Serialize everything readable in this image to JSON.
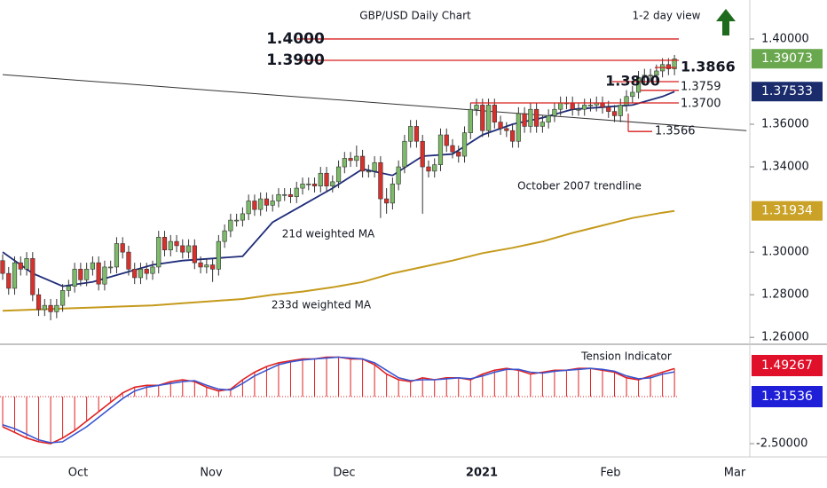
{
  "chart_data": {
    "type": "candlestick",
    "title": "GBP/USD Daily Chart",
    "subtitle": "1-2 day view",
    "open": [
      1.296,
      1.29,
      1.283,
      1.295,
      1.292,
      1.297,
      1.28,
      1.273,
      1.275,
      1.272,
      1.275,
      1.282,
      1.284,
      1.292,
      1.287,
      1.292,
      1.295,
      1.285,
      1.293,
      1.293,
      1.304,
      1.3,
      1.292,
      1.288,
      1.292,
      1.29,
      1.293,
      1.307,
      1.301,
      1.305,
      1.303,
      1.3,
      1.303,
      1.295,
      1.293,
      1.294,
      1.292,
      1.305,
      1.31,
      1.315,
      1.315,
      1.318,
      1.324,
      1.32,
      1.325,
      1.322,
      1.324,
      1.327,
      1.327,
      1.326,
      1.33,
      1.332,
      1.332,
      1.331,
      1.337,
      1.331,
      1.333,
      1.34,
      1.344,
      1.343,
      1.345,
      1.338,
      1.338,
      1.342,
      1.325,
      1.323,
      1.332,
      1.34,
      1.352,
      1.359,
      1.352,
      1.34,
      1.338,
      1.341,
      1.355,
      1.35,
      1.347,
      1.345,
      1.356,
      1.367,
      1.369,
      1.357,
      1.369,
      1.361,
      1.358,
      1.357,
      1.352,
      1.365,
      1.359,
      1.367,
      1.359,
      1.361,
      1.364,
      1.367,
      1.37,
      1.37,
      1.367,
      1.367,
      1.369,
      1.369,
      1.37,
      1.368,
      1.366,
      1.364,
      1.369,
      1.373,
      1.375,
      1.382,
      1.383,
      1.383,
      1.385,
      1.388,
      1.386
    ],
    "high": [
      1.299,
      1.293,
      1.298,
      1.298,
      1.3,
      1.3,
      1.283,
      1.278,
      1.278,
      1.278,
      1.285,
      1.287,
      1.295,
      1.295,
      1.295,
      1.298,
      1.298,
      1.296,
      1.296,
      1.307,
      1.307,
      1.303,
      1.295,
      1.295,
      1.295,
      1.296,
      1.31,
      1.31,
      1.308,
      1.308,
      1.306,
      1.306,
      1.306,
      1.298,
      1.297,
      1.297,
      1.308,
      1.313,
      1.318,
      1.318,
      1.321,
      1.327,
      1.327,
      1.328,
      1.328,
      1.327,
      1.33,
      1.33,
      1.33,
      1.333,
      1.335,
      1.335,
      1.335,
      1.34,
      1.34,
      1.336,
      1.343,
      1.347,
      1.347,
      1.35,
      1.348,
      1.341,
      1.345,
      1.345,
      1.33,
      1.335,
      1.343,
      1.355,
      1.362,
      1.362,
      1.355,
      1.343,
      1.344,
      1.358,
      1.358,
      1.353,
      1.35,
      1.359,
      1.37,
      1.372,
      1.372,
      1.372,
      1.372,
      1.364,
      1.361,
      1.36,
      1.368,
      1.368,
      1.37,
      1.37,
      1.364,
      1.367,
      1.37,
      1.373,
      1.373,
      1.373,
      1.37,
      1.372,
      1.372,
      1.373,
      1.373,
      1.371,
      1.369,
      1.372,
      1.376,
      1.378,
      1.385,
      1.386,
      1.386,
      1.388,
      1.391,
      1.391,
      1.3925
    ],
    "low": [
      1.287,
      1.28,
      1.28,
      1.289,
      1.289,
      1.277,
      1.27,
      1.27,
      1.268,
      1.269,
      1.272,
      1.279,
      1.281,
      1.284,
      1.284,
      1.289,
      1.282,
      1.282,
      1.29,
      1.29,
      1.297,
      1.289,
      1.285,
      1.285,
      1.287,
      1.287,
      1.29,
      1.298,
      1.298,
      1.3,
      1.297,
      1.297,
      1.292,
      1.29,
      1.29,
      1.286,
      1.289,
      1.302,
      1.307,
      1.312,
      1.312,
      1.315,
      1.317,
      1.317,
      1.319,
      1.319,
      1.321,
      1.324,
      1.323,
      1.323,
      1.327,
      1.329,
      1.328,
      1.328,
      1.328,
      1.328,
      1.33,
      1.337,
      1.34,
      1.34,
      1.335,
      1.335,
      1.335,
      1.316,
      1.318,
      1.32,
      1.329,
      1.337,
      1.349,
      1.349,
      1.318,
      1.335,
      1.335,
      1.338,
      1.347,
      1.344,
      1.342,
      1.342,
      1.353,
      1.364,
      1.354,
      1.354,
      1.358,
      1.355,
      1.354,
      1.349,
      1.349,
      1.356,
      1.356,
      1.356,
      1.356,
      1.358,
      1.361,
      1.364,
      1.367,
      1.364,
      1.364,
      1.364,
      1.366,
      1.366,
      1.365,
      1.363,
      1.361,
      1.361,
      1.366,
      1.37,
      1.372,
      1.379,
      1.38,
      1.38,
      1.382,
      1.383,
      1.383
    ],
    "close": [
      1.29,
      1.283,
      1.295,
      1.292,
      1.297,
      1.28,
      1.273,
      1.275,
      1.272,
      1.275,
      1.282,
      1.284,
      1.292,
      1.287,
      1.292,
      1.295,
      1.285,
      1.293,
      1.293,
      1.304,
      1.3,
      1.292,
      1.288,
      1.292,
      1.29,
      1.293,
      1.307,
      1.301,
      1.305,
      1.303,
      1.3,
      1.303,
      1.295,
      1.293,
      1.294,
      1.292,
      1.305,
      1.31,
      1.315,
      1.315,
      1.318,
      1.324,
      1.32,
      1.325,
      1.322,
      1.324,
      1.327,
      1.327,
      1.326,
      1.33,
      1.332,
      1.332,
      1.331,
      1.337,
      1.331,
      1.333,
      1.34,
      1.344,
      1.343,
      1.345,
      1.338,
      1.338,
      1.342,
      1.325,
      1.323,
      1.332,
      1.34,
      1.352,
      1.359,
      1.352,
      1.34,
      1.338,
      1.341,
      1.355,
      1.35,
      1.347,
      1.345,
      1.356,
      1.367,
      1.369,
      1.357,
      1.369,
      1.361,
      1.358,
      1.357,
      1.352,
      1.365,
      1.359,
      1.367,
      1.359,
      1.361,
      1.364,
      1.367,
      1.37,
      1.37,
      1.367,
      1.367,
      1.369,
      1.369,
      1.37,
      1.368,
      1.366,
      1.364,
      1.369,
      1.373,
      1.375,
      1.382,
      1.383,
      1.383,
      1.385,
      1.388,
      1.386,
      1.3907
    ],
    "up_color": "#7dbb6a",
    "down_color": "#d9302c",
    "ylim": [
      1.258,
      1.4183
    ],
    "yticks": [
      {
        "value": 1.4,
        "label": "1.40000"
      },
      {
        "value": 1.36,
        "label": "1.36000"
      },
      {
        "value": 1.34,
        "label": "1.34000"
      },
      {
        "value": 1.3,
        "label": "1.30000"
      },
      {
        "value": 1.28,
        "label": "1.28000"
      },
      {
        "value": 1.26,
        "label": "1.26000"
      }
    ],
    "x_labels": [
      "Oct",
      "Nov",
      "Dec",
      "2021",
      "Feb",
      "Mar"
    ],
    "levels": [
      {
        "value": 1.4,
        "label": "1.4000"
      },
      {
        "value": 1.39,
        "label": "1.3900"
      },
      {
        "value": 1.3866,
        "label": "1.3866"
      },
      {
        "value": 1.38,
        "label": "1.3800"
      },
      {
        "value": 1.3759,
        "label": "1.3759"
      },
      {
        "value": 1.37,
        "label": "1.3700"
      },
      {
        "value": 1.3566,
        "label": "1.3566"
      }
    ],
    "level_color": "#d81e1e",
    "ma21": {
      "name": "21d weighted MA",
      "color": "#1f2d7a",
      "x": [
        0,
        5,
        10,
        15,
        20,
        25,
        30,
        35,
        40,
        45,
        50,
        55,
        60,
        65,
        70,
        75,
        80,
        85,
        90,
        95,
        100,
        105,
        110,
        112
      ],
      "values": [
        1.3,
        1.29,
        1.284,
        1.286,
        1.29,
        1.294,
        1.296,
        1.297,
        1.298,
        1.314,
        1.322,
        1.33,
        1.339,
        1.336,
        1.345,
        1.346,
        1.355,
        1.36,
        1.363,
        1.367,
        1.368,
        1.369,
        1.373,
        1.3753
      ]
    },
    "ma233": {
      "name": "233d weighted MA",
      "color": "#c59a1c",
      "x": [
        0,
        5,
        10,
        15,
        20,
        25,
        30,
        35,
        40,
        45,
        50,
        55,
        60,
        65,
        70,
        75,
        80,
        85,
        90,
        95,
        100,
        105,
        110,
        112
      ],
      "values": [
        1.2725,
        1.273,
        1.2735,
        1.274,
        1.2745,
        1.275,
        1.276,
        1.277,
        1.278,
        1.28,
        1.2815,
        1.2835,
        1.286,
        1.29,
        1.293,
        1.296,
        1.2995,
        1.302,
        1.305,
        1.309,
        1.3125,
        1.316,
        1.3185,
        1.31934
      ]
    },
    "trendline": {
      "name": "October 2007 trendline",
      "color": "#333333",
      "x": [
        0,
        124
      ],
      "values": [
        1.3833,
        1.357
      ]
    },
    "price_badges": [
      {
        "value": 1.39073,
        "color": "#6aa84f"
      },
      {
        "value": 1.37533,
        "color": "#1a2c6b"
      },
      {
        "value": 1.31934,
        "color": "#c9a227"
      }
    ],
    "indicator": {
      "name": "Tension Indicator",
      "color": "#e02020",
      "signal_color": "#3a55d0",
      "x": [
        0,
        2,
        4,
        6,
        8,
        10,
        12,
        14,
        16,
        18,
        20,
        22,
        24,
        26,
        28,
        30,
        32,
        34,
        36,
        38,
        40,
        42,
        44,
        46,
        48,
        50,
        52,
        54,
        56,
        58,
        60,
        62,
        64,
        66,
        68,
        70,
        72,
        74,
        76,
        78,
        80,
        82,
        84,
        86,
        88,
        90,
        92,
        94,
        96,
        98,
        100,
        102,
        104,
        106,
        108,
        110,
        112
      ],
      "values": [
        -1.6,
        -1.9,
        -2.2,
        -2.4,
        -2.5,
        -2.2,
        -1.8,
        -1.3,
        -0.8,
        -0.3,
        0.2,
        0.5,
        0.6,
        0.6,
        0.8,
        0.9,
        0.8,
        0.5,
        0.3,
        0.4,
        0.9,
        1.3,
        1.6,
        1.8,
        1.9,
        2.0,
        2.0,
        2.1,
        2.1,
        2.0,
        2.0,
        1.7,
        1.2,
        0.9,
        0.8,
        1.0,
        0.9,
        1.0,
        1.0,
        0.9,
        1.2,
        1.4,
        1.5,
        1.4,
        1.2,
        1.3,
        1.4,
        1.4,
        1.5,
        1.5,
        1.4,
        1.3,
        1.0,
        0.9,
        1.1,
        1.3,
        1.49267
      ],
      "signal": [
        -1.5,
        -1.7,
        -2.0,
        -2.3,
        -2.45,
        -2.4,
        -2.0,
        -1.6,
        -1.1,
        -0.6,
        -0.1,
        0.3,
        0.5,
        0.6,
        0.7,
        0.8,
        0.85,
        0.6,
        0.4,
        0.35,
        0.7,
        1.1,
        1.4,
        1.7,
        1.85,
        1.95,
        2.0,
        2.05,
        2.1,
        2.05,
        2.0,
        1.8,
        1.4,
        1.0,
        0.85,
        0.9,
        0.9,
        0.95,
        1.0,
        0.95,
        1.1,
        1.3,
        1.45,
        1.45,
        1.3,
        1.25,
        1.35,
        1.4,
        1.45,
        1.5,
        1.45,
        1.35,
        1.1,
        0.95,
        1.0,
        1.2,
        1.31536
      ],
      "ylim": [
        -2.97,
        2.69
      ],
      "yticks": [
        {
          "value": -2.5,
          "label": "-2.50000"
        }
      ],
      "badges": [
        {
          "value": 1.49267,
          "color": "#e0102a"
        },
        {
          "value": 1.31536,
          "color": "#1f1fd8"
        }
      ]
    }
  }
}
